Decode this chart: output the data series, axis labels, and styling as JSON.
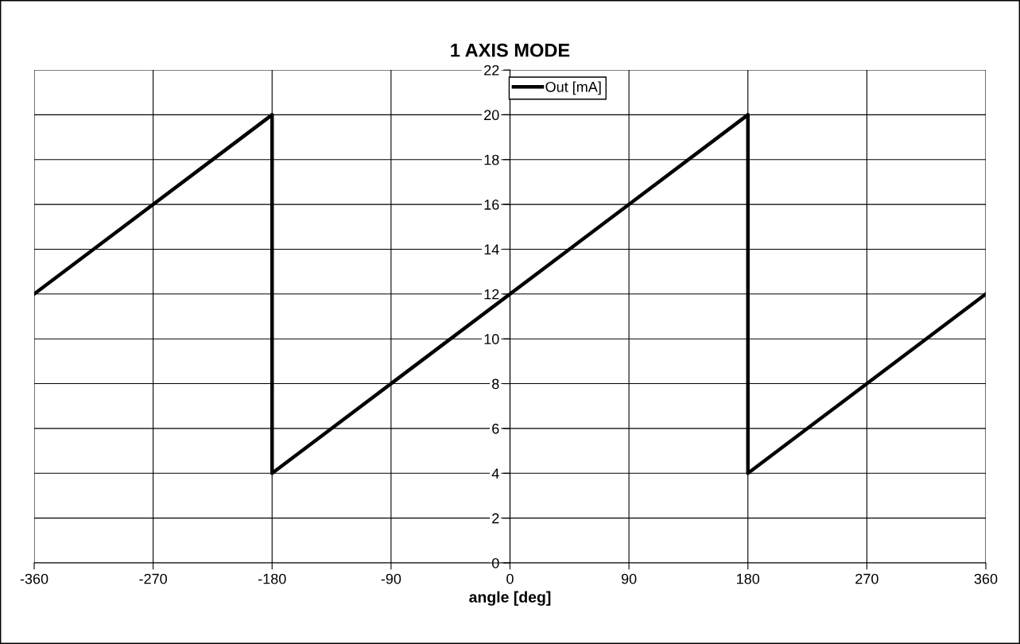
{
  "chart_data": {
    "type": "line",
    "title": "1 AXIS MODE",
    "xlabel": "angle [deg]",
    "x": [
      -360,
      -180,
      -180,
      180,
      180,
      360
    ],
    "series": [
      {
        "name": "Out [mA]",
        "color": "#000000",
        "values": [
          12,
          20,
          4,
          20,
          4,
          12
        ]
      }
    ],
    "xlim": [
      -360,
      360
    ],
    "xticks": [
      -360,
      -270,
      -180,
      -90,
      0,
      90,
      180,
      270,
      360
    ],
    "ylim": [
      0,
      22
    ],
    "yticks": [
      0,
      2,
      4,
      6,
      8,
      10,
      12,
      14,
      16,
      18,
      20,
      22
    ],
    "grid": true,
    "legend": "top",
    "marker": "none",
    "line_style": "solid"
  }
}
